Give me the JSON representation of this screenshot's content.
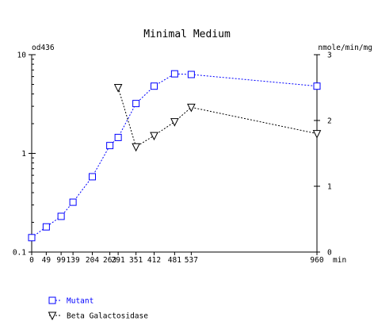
{
  "chart_data": {
    "type": "line",
    "title": "Minimal Medium",
    "xlabel": "min",
    "ylabel_left": "od436",
    "ylabel_right": "nmole/min/mg",
    "xlim": [
      0,
      960
    ],
    "ylim_left": [
      0.1,
      10
    ],
    "yscale_left": "log",
    "ylim_right": [
      0,
      3
    ],
    "yscale_right": "linear",
    "x_ticks": [
      0,
      49,
      99,
      139,
      204,
      263,
      291,
      351,
      412,
      481,
      537,
      960
    ],
    "x_tick_labels": [
      "0",
      "49",
      "99",
      "139",
      "204",
      "263",
      "291",
      "351",
      "412",
      "481",
      "537",
      "960"
    ],
    "y_left_ticks": [
      0.1,
      1,
      10
    ],
    "y_left_tick_labels": [
      "0.1",
      "1",
      "10"
    ],
    "y_right_ticks": [
      0,
      1,
      2,
      3
    ],
    "y_right_tick_labels": [
      "0",
      "1",
      "2",
      "3"
    ],
    "grid": false,
    "legend_position": "bottom-left",
    "series": [
      {
        "name": "Mutant",
        "axis": "left",
        "marker": "square",
        "color": "#0000ff",
        "x": [
          0,
          49,
          99,
          139,
          204,
          263,
          291,
          351,
          412,
          481,
          537,
          960
        ],
        "y": [
          0.14,
          0.18,
          0.23,
          0.32,
          0.58,
          1.2,
          1.45,
          3.2,
          4.8,
          6.4,
          6.3,
          4.8
        ]
      },
      {
        "name": "Beta Galactosidase",
        "axis": "right",
        "marker": "triangle-down",
        "color": "#000000",
        "x": [
          291,
          351,
          412,
          481,
          537,
          960
        ],
        "y": [
          2.5,
          1.6,
          1.77,
          1.98,
          2.2,
          1.8
        ]
      }
    ]
  }
}
